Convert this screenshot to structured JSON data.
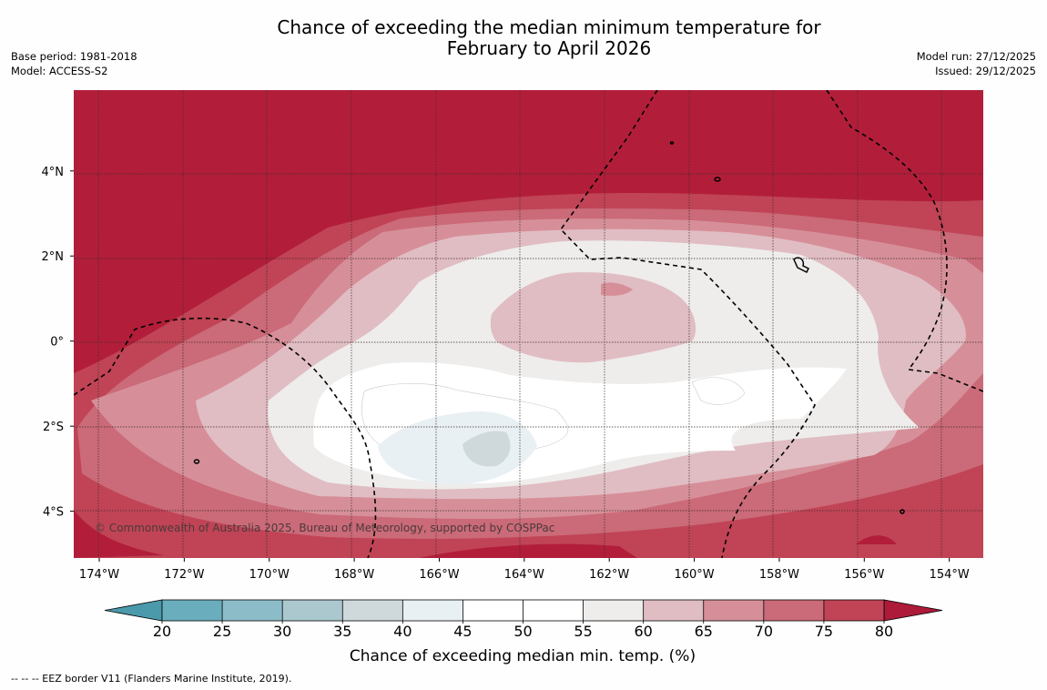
{
  "title_line1": "Chance of exceeding the median minimum temperature for",
  "title_line2": "February to April 2026",
  "base_period": "Base period: 1981-2018",
  "model": "Model: ACCESS-S2",
  "model_run": "Model run: 27/12/2025",
  "issued": "Issued: 29/12/2025",
  "copyright": "© Commonwealth of Australia 2025, Bureau of Meteorology, supported by COSPPac",
  "eez_note": "--  --  -- EEZ border V11 (Flanders Marine Institute, 2019).",
  "map_extent": {
    "lon_min": -174.6,
    "lon_max": -153.2,
    "lat_min": -5.1,
    "lat_max": 5.9
  },
  "lon_ticks": [
    {
      "value": -174,
      "label": "174°W"
    },
    {
      "value": -172,
      "label": "172°W"
    },
    {
      "value": -170,
      "label": "170°W"
    },
    {
      "value": -168,
      "label": "168°W"
    },
    {
      "value": -166,
      "label": "166°W"
    },
    {
      "value": -164,
      "label": "164°W"
    },
    {
      "value": -162,
      "label": "162°W"
    },
    {
      "value": -160,
      "label": "160°W"
    },
    {
      "value": -158,
      "label": "158°W"
    },
    {
      "value": -156,
      "label": "156°W"
    },
    {
      "value": -154,
      "label": "154°W"
    }
  ],
  "lat_ticks": [
    {
      "value": 4,
      "label": "4°N"
    },
    {
      "value": 2,
      "label": "2°N"
    },
    {
      "value": 0,
      "label": "0°"
    },
    {
      "value": -2,
      "label": "2°S"
    },
    {
      "value": -4,
      "label": "4°S"
    }
  ],
  "colorbar": {
    "title": "Chance of exceeding median min. temp. (%)",
    "ticks": [
      "20",
      "25",
      "30",
      "35",
      "40",
      "45",
      "50",
      "55",
      "60",
      "65",
      "70",
      "75",
      "80"
    ],
    "under_color": "#4a9aab",
    "over_color": "#ad1a3a",
    "bins": [
      {
        "from": 20,
        "to": 25,
        "color": "#6aadbd"
      },
      {
        "from": 25,
        "to": 30,
        "color": "#8cbcc8"
      },
      {
        "from": 30,
        "to": 35,
        "color": "#abc8cf"
      },
      {
        "from": 35,
        "to": 40,
        "color": "#cfd9dc"
      },
      {
        "from": 40,
        "to": 45,
        "color": "#e9f0f3"
      },
      {
        "from": 45,
        "to": 50,
        "color": "#ffffff"
      },
      {
        "from": 50,
        "to": 55,
        "color": "#ffffff"
      },
      {
        "from": 55,
        "to": 60,
        "color": "#eeedec"
      },
      {
        "from": 60,
        "to": 65,
        "color": "#e0bdc3"
      },
      {
        "from": 65,
        "to": 70,
        "color": "#d68f99"
      },
      {
        "from": 70,
        "to": 75,
        "color": "#cb6a78"
      },
      {
        "from": 75,
        "to": 80,
        "color": "#c04456"
      }
    ]
  }
}
